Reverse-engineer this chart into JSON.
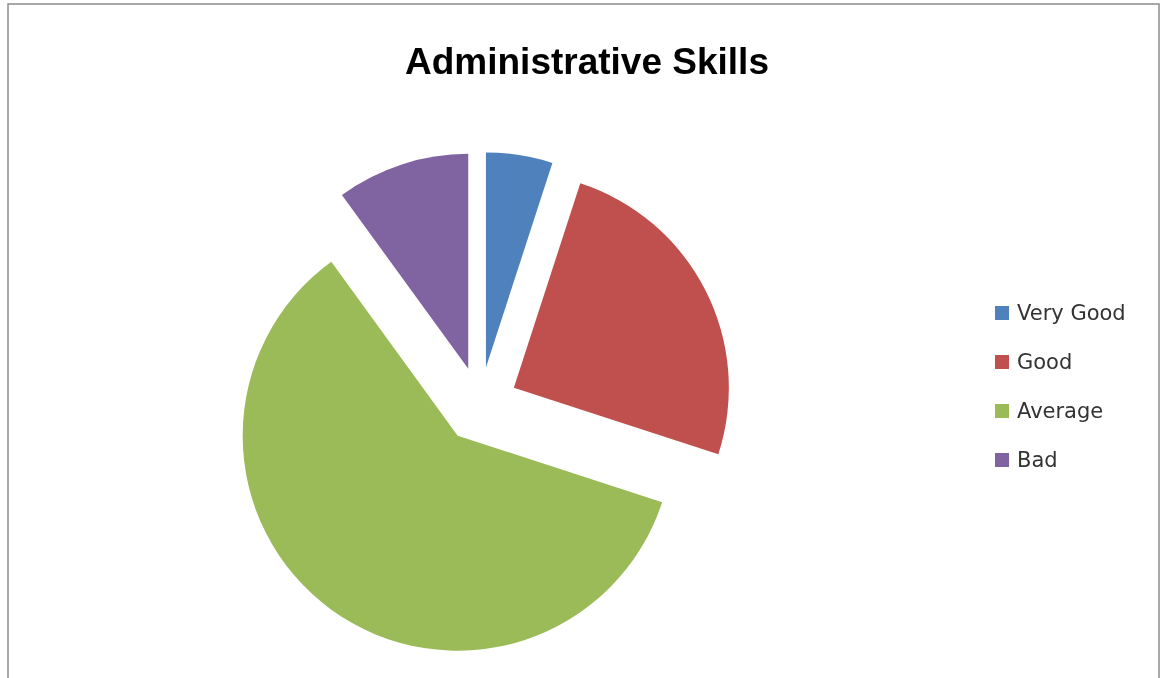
{
  "chart_data": {
    "type": "pie",
    "title": "Administrative Skills",
    "categories": [
      "Very Good",
      "Good",
      "Average",
      "Bad"
    ],
    "values": [
      5,
      25,
      60,
      10
    ],
    "colors": [
      "#4f81bd",
      "#c0504d",
      "#9bbb59",
      "#8064a2"
    ],
    "legend": "right"
  }
}
